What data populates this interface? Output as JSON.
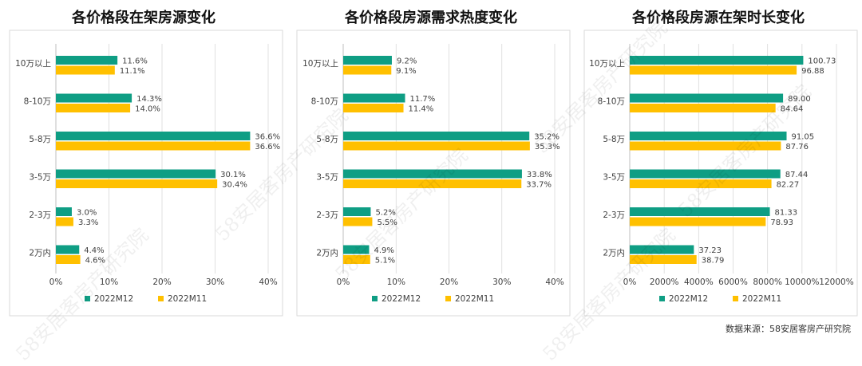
{
  "chart_data": [
    {
      "type": "bar",
      "title": "各价格段在架房源变化",
      "categories": [
        "10万以上",
        "8-10万",
        "5-8万",
        "3-5万",
        "2-3万",
        "2万内"
      ],
      "series": [
        {
          "name": "2022M12",
          "values": [
            11.6,
            14.3,
            36.6,
            30.1,
            3.0,
            4.4
          ],
          "labels": [
            "11.6%",
            "14.3%",
            "36.6%",
            "30.1%",
            "3.0%",
            "4.4%"
          ]
        },
        {
          "name": "2022M11",
          "values": [
            11.1,
            14.0,
            36.6,
            30.4,
            3.3,
            4.6
          ],
          "labels": [
            "11.1%",
            "14.0%",
            "36.6%",
            "30.4%",
            "3.3%",
            "4.6%"
          ]
        }
      ],
      "xlim": [
        0,
        40
      ],
      "ticks": [
        "0%",
        "10%",
        "20%",
        "30%",
        "40%"
      ],
      "legend": "bottom"
    },
    {
      "type": "bar",
      "title": "各价格段房源需求热度变化",
      "categories": [
        "10万以上",
        "8-10万",
        "5-8万",
        "3-5万",
        "2-3万",
        "2万内"
      ],
      "series": [
        {
          "name": "2022M12",
          "values": [
            9.2,
            11.7,
            35.2,
            33.8,
            5.2,
            4.9
          ],
          "labels": [
            "9.2%",
            "11.7%",
            "35.2%",
            "33.8%",
            "5.2%",
            "4.9%"
          ]
        },
        {
          "name": "2022M11",
          "values": [
            9.1,
            11.4,
            35.3,
            33.7,
            5.5,
            5.1
          ],
          "labels": [
            "9.1%",
            "11.4%",
            "35.3%",
            "33.7%",
            "5.5%",
            "5.1%"
          ]
        }
      ],
      "xlim": [
        0,
        40
      ],
      "ticks": [
        "0%",
        "10%",
        "20%",
        "30%",
        "40%"
      ],
      "legend": "bottom"
    },
    {
      "type": "bar",
      "title": "各价格段房源在架时长变化",
      "categories": [
        "10万以上",
        "8-10万",
        "5-8万",
        "3-5万",
        "2-3万",
        "2万内"
      ],
      "series": [
        {
          "name": "2022M12",
          "values": [
            100.73,
            89.0,
            91.05,
            87.44,
            81.33,
            37.23
          ],
          "labels": [
            "100.73",
            "89.00",
            "91.05",
            "87.44",
            "81.33",
            "37.23"
          ]
        },
        {
          "name": "2022M11",
          "values": [
            96.88,
            84.64,
            87.76,
            82.27,
            78.93,
            38.79
          ],
          "labels": [
            "96.88",
            "84.64",
            "87.76",
            "82.27",
            "78.93",
            "38.79"
          ]
        }
      ],
      "xlim": [
        0,
        120
      ],
      "ticks": [
        "0%",
        "2000%",
        "4000%",
        "6000%",
        "8000%",
        "10000%",
        "12000%"
      ],
      "legend": "bottom"
    }
  ],
  "colors": {
    "series1": "#0f9e84",
    "series2": "#ffc000",
    "frame": "#d9d9d9",
    "grid": "#d9d9d9"
  },
  "source": "数据来源：58安居客房产研究院",
  "watermark": "58安居客房产研究院"
}
